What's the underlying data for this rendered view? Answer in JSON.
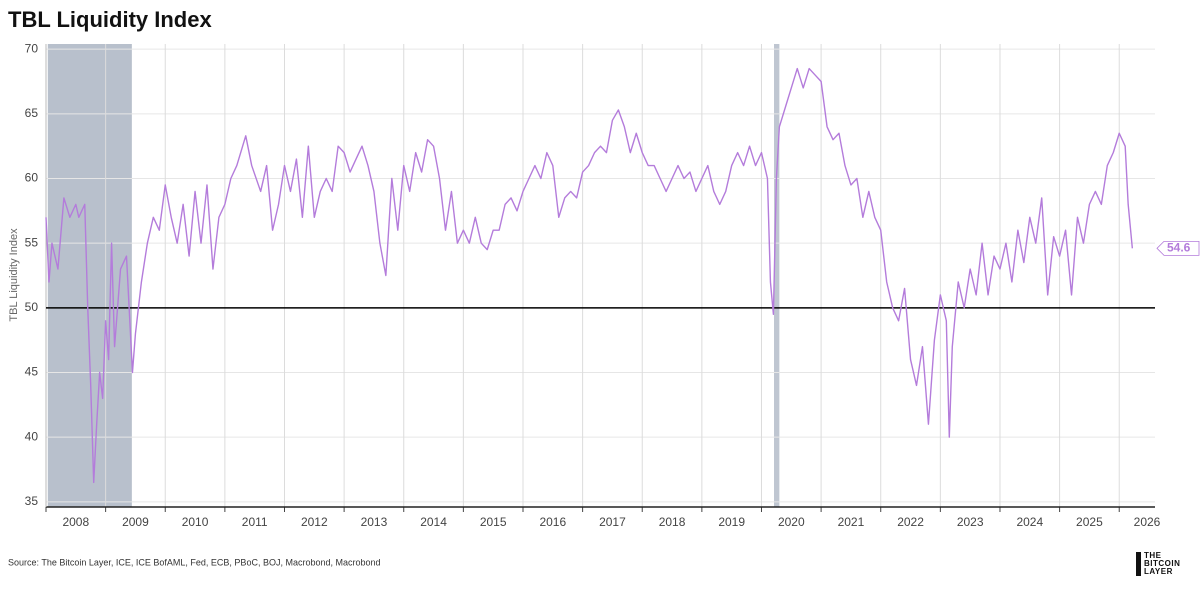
{
  "chart_data": {
    "type": "line",
    "title": "TBL Liquidity Index",
    "y_axis_label": "TBL Liquidity Index",
    "source": "Source: The Bitcoin Layer, ICE, ICE BofAML, Fed, ECB, PBoC, BOJ, Macrobond, Macrobond",
    "logo": [
      "THE",
      "BITCOIN",
      "LAYER"
    ],
    "xlim": [
      2008,
      2026.6
    ],
    "xticks": [
      2008,
      2009,
      2010,
      2011,
      2012,
      2013,
      2014,
      2015,
      2016,
      2017,
      2018,
      2019,
      2020,
      2021,
      2022,
      2023,
      2024,
      2025,
      2026
    ],
    "ylim": [
      34.6,
      70.4
    ],
    "yticks": [
      35,
      40,
      45,
      50,
      55,
      60,
      65,
      70
    ],
    "grid": true,
    "reference_line": 50,
    "shaded_regions": [
      [
        2008.03,
        2009.44
      ],
      [
        2020.21,
        2020.3
      ]
    ],
    "shade_color": "#b8c0cc",
    "last_value_label": "54.6",
    "x": [
      2008.0,
      2008.05,
      2008.1,
      2008.2,
      2008.3,
      2008.4,
      2008.5,
      2008.55,
      2008.65,
      2008.7,
      2008.75,
      2008.8,
      2008.85,
      2008.9,
      2008.95,
      2009.0,
      2009.05,
      2009.1,
      2009.15,
      2009.25,
      2009.35,
      2009.45,
      2009.5,
      2009.6,
      2009.7,
      2009.8,
      2009.9,
      2010.0,
      2010.1,
      2010.2,
      2010.3,
      2010.4,
      2010.5,
      2010.6,
      2010.7,
      2010.8,
      2010.9,
      2011.0,
      2011.1,
      2011.2,
      2011.35,
      2011.45,
      2011.6,
      2011.7,
      2011.8,
      2011.9,
      2012.0,
      2012.1,
      2012.2,
      2012.3,
      2012.4,
      2012.5,
      2012.6,
      2012.7,
      2012.8,
      2012.9,
      2013.0,
      2013.1,
      2013.2,
      2013.3,
      2013.4,
      2013.5,
      2013.6,
      2013.7,
      2013.8,
      2013.9,
      2014.0,
      2014.1,
      2014.2,
      2014.3,
      2014.4,
      2014.5,
      2014.6,
      2014.7,
      2014.8,
      2014.9,
      2015.0,
      2015.1,
      2015.2,
      2015.3,
      2015.4,
      2015.5,
      2015.6,
      2015.7,
      2015.8,
      2015.9,
      2016.0,
      2016.1,
      2016.2,
      2016.3,
      2016.4,
      2016.5,
      2016.6,
      2016.7,
      2016.8,
      2016.9,
      2017.0,
      2017.1,
      2017.2,
      2017.3,
      2017.4,
      2017.5,
      2017.6,
      2017.7,
      2017.8,
      2017.9,
      2018.0,
      2018.1,
      2018.2,
      2018.3,
      2018.4,
      2018.5,
      2018.6,
      2018.7,
      2018.8,
      2018.9,
      2019.0,
      2019.1,
      2019.2,
      2019.3,
      2019.4,
      2019.5,
      2019.6,
      2019.7,
      2019.8,
      2019.9,
      2020.0,
      2020.1,
      2020.15,
      2020.2,
      2020.25,
      2020.3,
      2020.4,
      2020.5,
      2020.6,
      2020.7,
      2020.8,
      2020.9,
      2021.0,
      2021.1,
      2021.2,
      2021.3,
      2021.4,
      2021.5,
      2021.6,
      2021.7,
      2021.8,
      2021.9,
      2022.0,
      2022.1,
      2022.2,
      2022.3,
      2022.4,
      2022.5,
      2022.6,
      2022.7,
      2022.8,
      2022.9,
      2023.0,
      2023.1,
      2023.15,
      2023.2,
      2023.3,
      2023.4,
      2023.5,
      2023.6,
      2023.7,
      2023.8,
      2023.9,
      2024.0,
      2024.1,
      2024.2,
      2024.3,
      2024.4,
      2024.5,
      2024.6,
      2024.7,
      2024.8,
      2024.9,
      2025.0,
      2025.1,
      2025.2,
      2025.3,
      2025.4,
      2025.5,
      2025.6,
      2025.7,
      2025.8,
      2025.9,
      2026.0,
      2026.1,
      2026.15,
      2026.22
    ],
    "series": [
      {
        "name": "TBL Liquidity Index",
        "color": "#b47cdb",
        "values": [
          57,
          52,
          55,
          53,
          58.5,
          57,
          58,
          57,
          58,
          50,
          44,
          36.5,
          41,
          45,
          43,
          49,
          46,
          55,
          47,
          53,
          54,
          45,
          48,
          52,
          55,
          57,
          56,
          59.5,
          57,
          55,
          58,
          54,
          59,
          55,
          59.5,
          53,
          57,
          58,
          60,
          61,
          63.3,
          61,
          59,
          61,
          56,
          58,
          61,
          59,
          61.5,
          57,
          62.5,
          57,
          59,
          60,
          59,
          62.5,
          62,
          60.5,
          61.5,
          62.5,
          61,
          59,
          55,
          52.5,
          60,
          56,
          61,
          59,
          62,
          60.5,
          63,
          62.5,
          60,
          56,
          59,
          55,
          56,
          55,
          57,
          55,
          54.5,
          56,
          56,
          58,
          58.5,
          57.5,
          59,
          60,
          61,
          60,
          62,
          61,
          57,
          58.5,
          59,
          58.5,
          60.5,
          61,
          62,
          62.5,
          62,
          64.5,
          65.3,
          64,
          62,
          63.5,
          62,
          61,
          61,
          60,
          59,
          60,
          61,
          60,
          60.5,
          59,
          60,
          61,
          59,
          58,
          59,
          61,
          62,
          61,
          62.5,
          61,
          62,
          60,
          52,
          49.5,
          60,
          64,
          65.5,
          67,
          68.5,
          67,
          68.5,
          68,
          67.5,
          64,
          63,
          63.5,
          61,
          59.5,
          60,
          57,
          59,
          57,
          56,
          52,
          50,
          49,
          51.5,
          46,
          44,
          47,
          41,
          47.5,
          51,
          49,
          40,
          47,
          52,
          50,
          53,
          51,
          55,
          51,
          54,
          53,
          55,
          52,
          56,
          53.5,
          57,
          55,
          58.5,
          51,
          55.5,
          54,
          56,
          51,
          57,
          55,
          58,
          59,
          58,
          61,
          62,
          63.5,
          62.5,
          58,
          54.6
        ]
      }
    ]
  }
}
